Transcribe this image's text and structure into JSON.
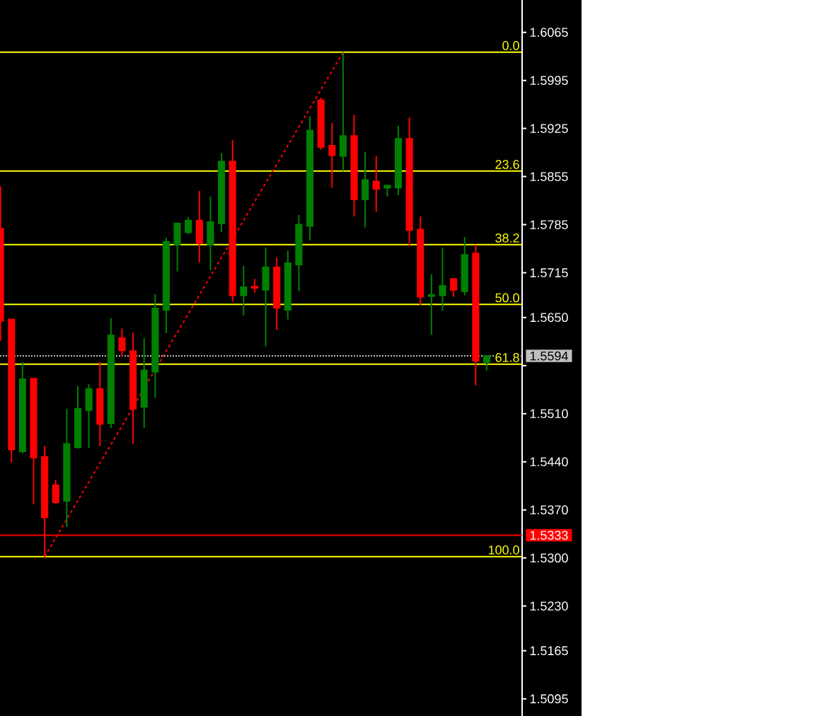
{
  "chart_data": {
    "type": "candlestick",
    "categories": [
      null,
      null,
      null,
      null,
      null,
      null,
      null,
      null,
      null,
      null,
      null,
      null,
      null,
      null,
      null,
      null,
      null,
      null,
      null,
      null,
      null,
      null,
      null,
      null,
      null,
      null,
      null,
      null,
      null,
      null,
      null,
      null,
      null,
      null,
      null,
      null,
      null,
      null,
      null,
      null,
      null,
      null,
      null,
      null,
      null
    ],
    "ohlc": [
      [
        1.5779,
        1.5841,
        1.5616,
        1.5645
      ],
      [
        1.5647,
        1.5647,
        1.5439,
        1.5458
      ],
      [
        1.5455,
        1.5585,
        1.5452,
        1.556
      ],
      [
        1.5561,
        1.5562,
        1.5378,
        1.5446
      ],
      [
        1.5447,
        1.5463,
        1.5302,
        1.5359
      ],
      [
        1.5406,
        1.5414,
        1.5379,
        1.5381
      ],
      [
        1.5383,
        1.5517,
        1.5345,
        1.5466
      ],
      [
        1.5461,
        1.555,
        1.5459,
        1.5517
      ],
      [
        1.5515,
        1.5553,
        1.546,
        1.5546
      ],
      [
        1.5546,
        1.5585,
        1.5463,
        1.5495
      ],
      [
        1.5496,
        1.5649,
        1.5489,
        1.5624
      ],
      [
        1.562,
        1.5634,
        1.5593,
        1.5602
      ],
      [
        1.5601,
        1.5628,
        1.5466,
        1.5517
      ],
      [
        1.552,
        1.562,
        1.5489,
        1.5573
      ],
      [
        1.5571,
        1.5684,
        1.5533,
        1.5663
      ],
      [
        1.5661,
        1.5766,
        1.5627,
        1.576
      ],
      [
        1.5756,
        1.5788,
        1.5717,
        1.5787
      ],
      [
        1.5774,
        1.5796,
        1.5771,
        1.5791
      ],
      [
        1.5791,
        1.5834,
        1.573,
        1.5758
      ],
      [
        1.5756,
        1.5826,
        1.5719,
        1.5789
      ],
      [
        1.5787,
        1.5889,
        1.5774,
        1.5877
      ],
      [
        1.5877,
        1.5908,
        1.5673,
        1.5682
      ],
      [
        1.5682,
        1.5725,
        1.5653,
        1.5694
      ],
      [
        1.5695,
        1.5706,
        1.5686,
        1.5693
      ],
      [
        1.569,
        1.5752,
        1.5608,
        1.5723
      ],
      [
        1.5723,
        1.5737,
        1.5632,
        1.5664
      ],
      [
        1.5661,
        1.5747,
        1.5647,
        1.5729
      ],
      [
        1.5727,
        1.5799,
        1.5688,
        1.5785
      ],
      [
        1.5783,
        1.5943,
        1.5762,
        1.5922
      ],
      [
        1.5966,
        1.597,
        1.5894,
        1.5898
      ],
      [
        1.59,
        1.5933,
        1.5839,
        1.5886
      ],
      [
        1.5885,
        1.6036,
        1.5863,
        1.5914
      ],
      [
        1.5914,
        1.5945,
        1.5797,
        1.5822
      ],
      [
        1.5822,
        1.5891,
        1.5781,
        1.585
      ],
      [
        1.5848,
        1.5885,
        1.5804,
        1.5837
      ],
      [
        1.5839,
        1.5842,
        1.5826,
        1.5842
      ],
      [
        1.5839,
        1.5929,
        1.5828,
        1.591
      ],
      [
        1.591,
        1.5941,
        1.5754,
        1.5777
      ],
      [
        1.5778,
        1.5797,
        1.5668,
        1.568
      ],
      [
        1.5681,
        1.5713,
        1.5625,
        1.5683
      ],
      [
        1.5682,
        1.5752,
        1.566,
        1.5696
      ],
      [
        1.5706,
        1.5706,
        1.568,
        1.569
      ],
      [
        1.5688,
        1.5767,
        1.5682,
        1.5741
      ],
      [
        1.5743,
        1.5756,
        1.5551,
        1.5587
      ],
      [
        1.5585,
        1.5594,
        1.5573,
        1.5594
      ]
    ],
    "colors": [
      "#ff0000",
      "#ff0000",
      "#008000",
      "#ff0000",
      "#ff0000",
      "#ff0000",
      "#008000",
      "#008000",
      "#008000",
      "#ff0000",
      "#008000",
      "#ff0000",
      "#ff0000",
      "#008000",
      "#008000",
      "#008000",
      "#008000",
      "#008000",
      "#ff0000",
      "#008000",
      "#008000",
      "#ff0000",
      "#008000",
      "#ff0000",
      "#008000",
      "#ff0000",
      "#008000",
      "#008000",
      "#008000",
      "#ff0000",
      "#ff0000",
      "#008000",
      "#ff0000",
      "#008000",
      "#ff0000",
      "#008000",
      "#008000",
      "#ff0000",
      "#ff0000",
      "#008000",
      "#008000",
      "#ff0000",
      "#008000",
      "#ff0000",
      "#008000"
    ],
    "series": [
      {
        "type": "line",
        "color": "#ff0000",
        "line_style": "dashed",
        "values": [
          null,
          null,
          null,
          null,
          1.5302,
          null,
          null,
          null,
          null,
          null,
          null,
          null,
          null,
          null,
          null,
          null,
          null,
          null,
          null,
          null,
          null,
          null,
          null,
          null,
          null,
          null,
          null,
          null,
          null,
          null,
          null,
          1.6036,
          null,
          null,
          null,
          null,
          null,
          null,
          null,
          null,
          null,
          null,
          null,
          null,
          null
        ]
      }
    ],
    "ylim": [
      1.507,
      1.6112
    ],
    "yticks": [
      1.6065,
      1.5995,
      1.5925,
      1.5855,
      1.5785,
      1.5715,
      {
        "value": 1.565,
        "label": "1.5650"
      },
      {
        "value": 1.558,
        "label": null
      },
      {
        "value": 1.551,
        "label": "1.5510"
      },
      {
        "value": 1.544,
        "label": "1.5440"
      },
      {
        "value": 1.537,
        "label": "1.5370"
      },
      {
        "value": 1.53,
        "label": "1.5300"
      },
      {
        "value": 1.523,
        "label": "1.5230"
      },
      1.5165,
      1.5095
    ],
    "tick_labels": "y",
    "ref_lines": [
      {
        "axis": "y",
        "value": 1.6036,
        "color": "#ffff00"
      },
      {
        "axis": "y",
        "value": 1.5863,
        "color": "#ffff00"
      },
      {
        "axis": "y",
        "value": 1.5756,
        "color": "#ffff00"
      },
      {
        "axis": "y",
        "value": 1.5669,
        "color": "#ffff00"
      },
      {
        "axis": "y",
        "value": 1.5582,
        "color": "#ffff00"
      },
      {
        "axis": "y",
        "value": 1.5302,
        "color": "#ffff00"
      },
      {
        "axis": "y",
        "value": 1.5594,
        "label": "1.5594",
        "color": "#c0c0c0",
        "line_style": "dotted"
      },
      {
        "axis": "y",
        "value": 1.5333,
        "label": "1.5333",
        "color": "#ff0000"
      }
    ],
    "annotations": [
      {
        "text": "0.0",
        "y": 1.6036
      },
      {
        "text": "23.6",
        "y": 1.5863
      },
      {
        "text": "38.2",
        "y": 1.5756
      },
      {
        "text": "50.0",
        "y": 1.5669
      },
      {
        "text": "61.8",
        "y": 1.5582
      },
      {
        "text": "100.0",
        "y": 1.5302
      }
    ]
  }
}
